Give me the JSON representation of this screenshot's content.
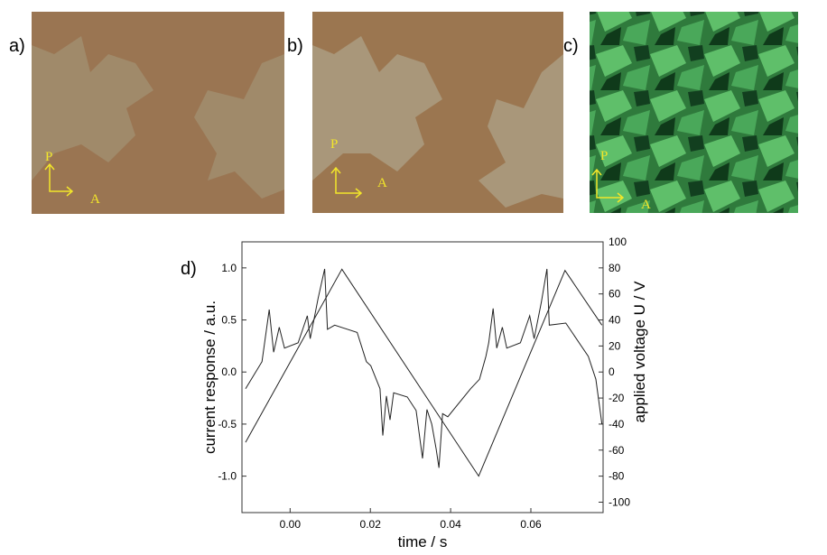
{
  "panels": [
    {
      "label": "a)",
      "polarizer": "P",
      "analyzer": "A"
    },
    {
      "label": "b)",
      "polarizer": "P",
      "analyzer": "A"
    },
    {
      "label": "c)",
      "polarizer": "P",
      "analyzer": "A"
    }
  ],
  "chart_data": {
    "type": "line",
    "panel_label": "d)",
    "x_label": "time / s",
    "y_label": "current response / a.u.",
    "y2_label": "applied voltage U / V",
    "xlim": [
      -0.012,
      0.078
    ],
    "xticks": [
      {
        "value": 0,
        "label": "0.00"
      },
      {
        "value": 0.02,
        "label": "0.02"
      },
      {
        "value": 0.04,
        "label": "0.04"
      },
      {
        "value": 0.06,
        "label": "0.06"
      }
    ],
    "ylim": [
      -1.35,
      1.25
    ],
    "yticks": [
      {
        "value": -1,
        "label": "-1.0"
      },
      -0.5,
      {
        "value": 0,
        "label": "0.0"
      },
      0.5,
      {
        "value": 1,
        "label": "1.0"
      }
    ],
    "y2lim": [
      -108,
      100
    ],
    "y2ticks": [
      -100,
      -80,
      -60,
      -40,
      -20,
      0,
      20,
      40,
      60,
      80,
      100
    ],
    "series": [
      {
        "color": "#222222",
        "x": [
          -0.0111,
          -0.007,
          -0.0052,
          -0.0041,
          -0.0027,
          -0.0014,
          0.002,
          0.0043,
          0.005,
          0.007,
          0.0086,
          0.0093,
          0.0111,
          0.0167,
          0.019,
          0.0201,
          0.0224,
          0.0231,
          0.024,
          0.0249,
          0.0258,
          0.0292,
          0.0314,
          0.033,
          0.0341,
          0.0353,
          0.0364,
          0.0371,
          0.038,
          0.0393,
          0.045,
          0.0472,
          0.0488,
          0.0495,
          0.0506,
          0.0515,
          0.0529,
          0.054,
          0.0574,
          0.0597,
          0.0608,
          0.0626,
          0.064,
          0.0646,
          0.0687,
          0.0743,
          0.0762,
          0.0777
        ],
        "values": [
          -0.16,
          0.1,
          0.6,
          0.19,
          0.43,
          0.23,
          0.28,
          0.54,
          0.32,
          0.71,
          0.99,
          0.41,
          0.45,
          0.38,
          0.1,
          0.06,
          -0.16,
          -0.61,
          -0.23,
          -0.46,
          -0.2,
          -0.24,
          -0.37,
          -0.83,
          -0.36,
          -0.5,
          -0.74,
          -0.92,
          -0.4,
          -0.43,
          -0.16,
          -0.07,
          0.15,
          0.28,
          0.61,
          0.23,
          0.43,
          0.23,
          0.28,
          0.54,
          0.32,
          0.67,
          0.99,
          0.45,
          0.47,
          0.15,
          -0.07,
          -0.5
        ]
      },
      {
        "color": "#222222",
        "axis": "y2",
        "x": [
          -0.0111,
          0.0129,
          0.047,
          0.0685,
          0.0777
        ],
        "values": [
          -54,
          79,
          -80,
          78,
          36
        ]
      }
    ]
  }
}
